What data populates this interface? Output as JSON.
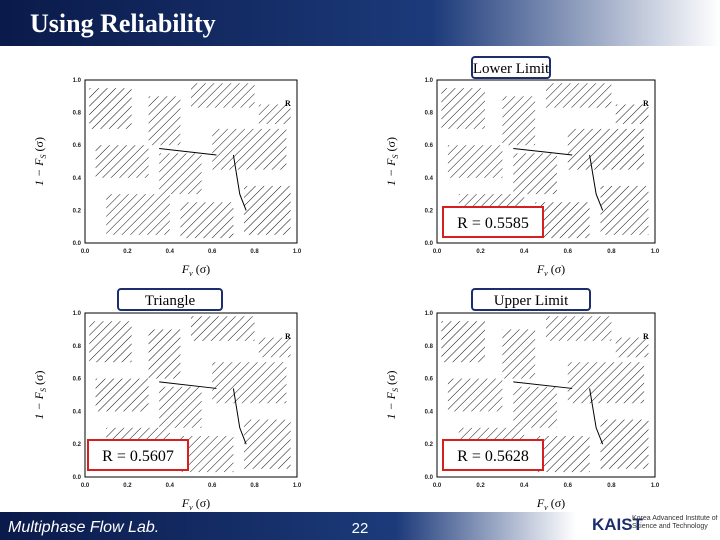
{
  "header": {
    "title": "Using Reliability"
  },
  "axes": {
    "xticks": [
      "0.0",
      "0.2",
      "0.4",
      "0.6",
      "0.8",
      "1.0"
    ],
    "yticks": [
      "0.0",
      "0.2",
      "0.4",
      "0.6",
      "0.8",
      "1.0"
    ],
    "ylabel": {
      "main": "1 − F",
      "sub": "S",
      "arg": "(σ)"
    },
    "xlabel": {
      "main": "F",
      "sub": "v",
      "arg": "(σ)"
    }
  },
  "panels": [
    {
      "marker": "R"
    },
    {
      "marker": "R",
      "label": "Lower Limit",
      "result": "R = 0.5585"
    },
    {
      "marker": "R",
      "label": "Triangle",
      "result": "R = 0.5607"
    },
    {
      "marker": "R",
      "label": "Upper Limit",
      "result": "R = 0.5628"
    }
  ],
  "footer": {
    "lab": "Multiphase Flow Lab.",
    "page": "22",
    "logo": "KAIST",
    "institute": "Korea Advanced Institute of Science and Technology"
  }
}
